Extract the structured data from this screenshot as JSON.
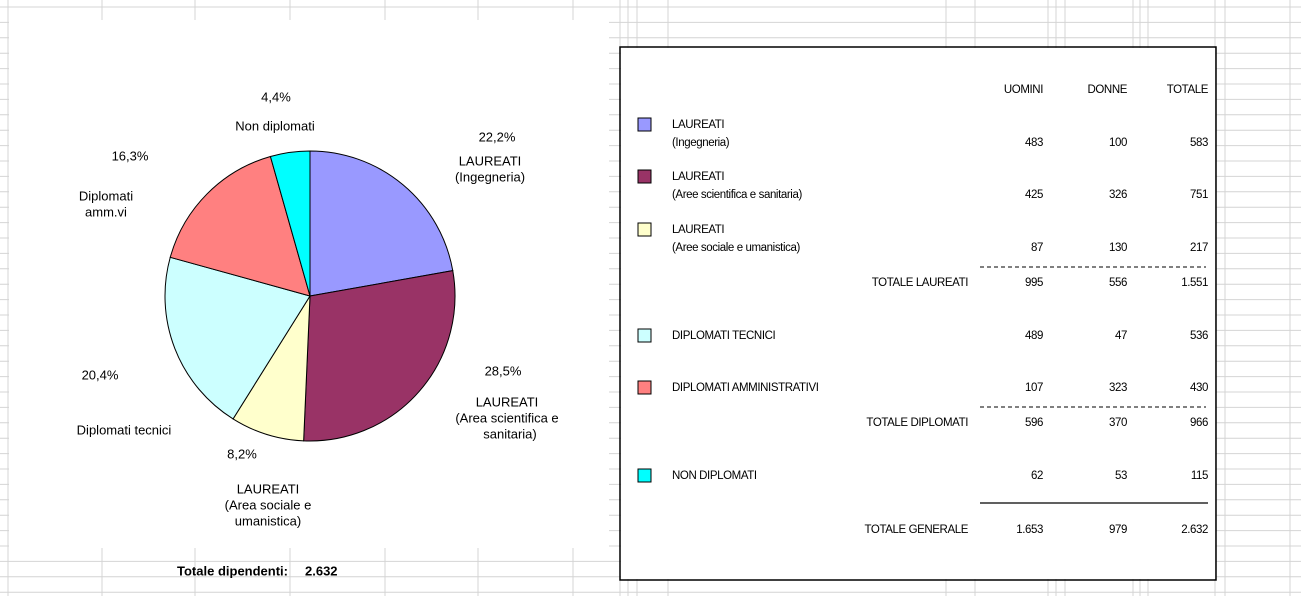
{
  "chart_data": {
    "type": "pie",
    "categories": [
      [
        "LAUREATI",
        "(Ingegneria)"
      ],
      [
        "LAUREATI",
        "(Area scientifica e",
        "sanitaria)"
      ],
      [
        "LAUREATI",
        "(Area sociale e",
        "umanistica)"
      ],
      [
        "Diplomati tecnici"
      ],
      [
        "Diplomati",
        "amm.vi"
      ],
      [
        "Non diplomati"
      ]
    ],
    "values": [
      22.2,
      28.5,
      8.2,
      20.4,
      16.3,
      4.4
    ],
    "value_labels": [
      "22,2%",
      "28,5%",
      "8,2%",
      "20,4%",
      "16,3%",
      "4,4%"
    ],
    "colors": [
      "#9999ff",
      "#993366",
      "#ffffcc",
      "#ccffff",
      "#ff8080",
      "#00ffff"
    ],
    "total_label": "Totale dipendenti:",
    "total_value": "2.632"
  },
  "table": {
    "columns": [
      "UOMINI",
      "DONNE",
      "TOTALE"
    ],
    "rows": [
      {
        "label": [
          "LAUREATI",
          "(Ingegneria)"
        ],
        "color": "#9999ff",
        "values": [
          "483",
          "100",
          "583"
        ]
      },
      {
        "label": [
          "LAUREATI",
          "(Aree scientifica e sanitaria)"
        ],
        "color": "#993366",
        "values": [
          "425",
          "326",
          "751"
        ]
      },
      {
        "label": [
          "LAUREATI",
          "(Aree sociale e umanistica)"
        ],
        "color": "#ffffcc",
        "values": [
          "87",
          "130",
          "217"
        ]
      },
      {
        "label": [
          "TOTALE LAUREATI"
        ],
        "values": [
          "995",
          "556",
          "1.551"
        ]
      },
      {
        "label": [
          "DIPLOMATI TECNICI"
        ],
        "color": "#ccffff",
        "values": [
          "489",
          "47",
          "536"
        ]
      },
      {
        "label": [
          "DIPLOMATI AMMINISTRATIVI"
        ],
        "color": "#ff8080",
        "values": [
          "107",
          "323",
          "430"
        ]
      },
      {
        "label": [
          "TOTALE DIPLOMATI"
        ],
        "values": [
          "596",
          "370",
          "966"
        ]
      },
      {
        "label": [
          "NON DIPLOMATI"
        ],
        "color": "#00ffff",
        "values": [
          "62",
          "53",
          "115"
        ]
      },
      {
        "label": [
          "TOTALE GENERALE"
        ],
        "values": [
          "1.653",
          "979",
          "2.632"
        ]
      }
    ]
  }
}
